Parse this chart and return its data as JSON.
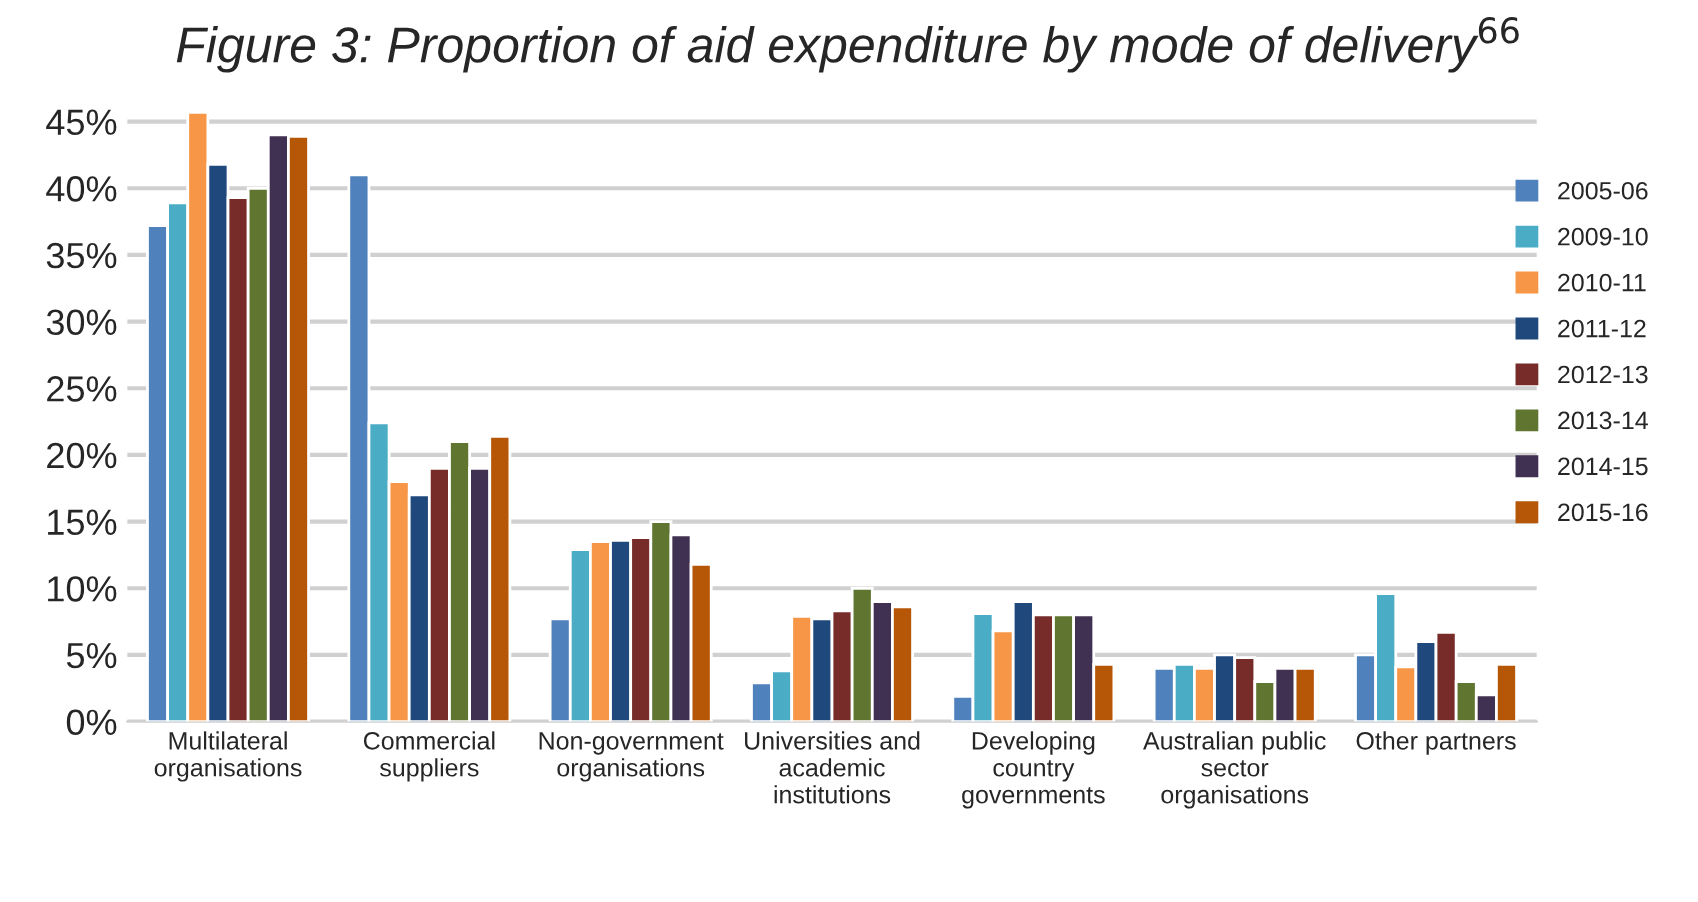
{
  "chart_data": {
    "type": "bar",
    "title": "Figure 3: Proportion of aid expenditure by mode of delivery$^{66}$",
    "categories": [
      "Multilateral\norganisations",
      "Commercial\nsuppliers",
      "Non-government\norganisations",
      "Universities and\nacademic\ninstitutions",
      "Developing\ncountry\ngovernments",
      "Australian public\nsector\norganisations",
      "Other partners"
    ],
    "series": [
      {
        "name": "2005-06",
        "color": "#4f81bd",
        "values": [
          37.2,
          41,
          7.7,
          2.9,
          1.9,
          4.0,
          5.0
        ]
      },
      {
        "name": "2009-10",
        "color": "#4bacc6",
        "values": [
          38.9,
          22.4,
          12.9,
          3.8,
          8.1,
          4.3,
          9.6
        ]
      },
      {
        "name": "2010-11",
        "color": "#f79646",
        "values": [
          45.7,
          18,
          13.5,
          7.9,
          6.8,
          4.0,
          4.1
        ]
      },
      {
        "name": "2011-12",
        "color": "#1f497d",
        "values": [
          41.8,
          17,
          13.6,
          7.7,
          9,
          5.0,
          6
        ]
      },
      {
        "name": "2012-13",
        "color": "#772c2a",
        "values": [
          39.3,
          19,
          13.8,
          8.3,
          8,
          4.8,
          6.7
        ]
      },
      {
        "name": "2013-14",
        "color": "#5f7530",
        "values": [
          40,
          21,
          15,
          10,
          8,
          3.0,
          3.0
        ]
      },
      {
        "name": "2014-15",
        "color": "#403152",
        "values": [
          44,
          19,
          14,
          9,
          8,
          4.0,
          2.0
        ]
      },
      {
        "name": "2015-16",
        "color": "#b65708",
        "values": [
          43.9,
          21.4,
          11.8,
          8.6,
          4.3,
          4.0,
          4.3
        ]
      }
    ],
    "ylim": [
      0,
      46
    ],
    "yticks": [
      {
        "value": 0,
        "label": "0%"
      },
      {
        "value": 5,
        "label": "5%"
      },
      {
        "value": 10,
        "label": "10%"
      },
      {
        "value": 15,
        "label": "15%"
      },
      {
        "value": 20,
        "label": "20%"
      },
      {
        "value": 25,
        "label": "25%"
      },
      {
        "value": 30,
        "label": "30%"
      },
      {
        "value": 35,
        "label": "35%"
      },
      {
        "value": 40,
        "label": "40%"
      },
      {
        "value": 45,
        "label": "45%"
      }
    ],
    "grid": "y",
    "legend": "right"
  }
}
